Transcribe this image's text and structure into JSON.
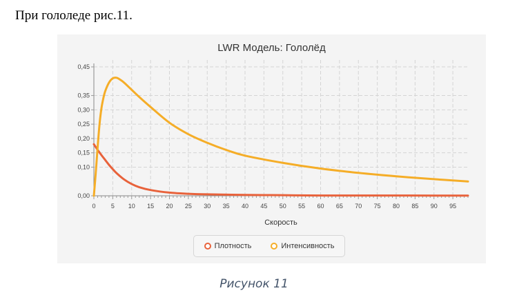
{
  "intro_text": "При гололеде рис.11.",
  "caption": "Рисунок 11",
  "colors": {
    "panel_bg": "#f4f4f4",
    "grid": "#d4d4d4",
    "density": "#e8623b",
    "intensity": "#f5ad27"
  },
  "chart_data": {
    "type": "line",
    "title": "LWR Модель: Гололёд",
    "xlabel": "Скорость",
    "ylabel": "",
    "xlim": [
      0,
      99
    ],
    "ylim": [
      0,
      0.45
    ],
    "x_ticks": [
      "0",
      "5",
      "10",
      "15",
      "20",
      "25",
      "30",
      "35",
      "40",
      "45",
      "50",
      "55",
      "60",
      "65",
      "70",
      "75",
      "80",
      "85",
      "90",
      "95"
    ],
    "y_ticks": [
      "0,00",
      "0,10",
      "0,15",
      "0,20",
      "0,25",
      "0,30",
      "0,35",
      "0,45"
    ],
    "y_tick_values": [
      0,
      0.1,
      0.15,
      0.2,
      0.25,
      0.3,
      0.35,
      0.45
    ],
    "grid": true,
    "legend_position": "bottom",
    "series": [
      {
        "name": "Плотность",
        "color": "#e8623b",
        "x": [
          0,
          1,
          2,
          3,
          4,
          5,
          6,
          8,
          10,
          12,
          15,
          20,
          25,
          30,
          40,
          50,
          60,
          70,
          80,
          90,
          99
        ],
        "y": [
          0.18,
          0.16,
          0.142,
          0.125,
          0.108,
          0.093,
          0.079,
          0.057,
          0.041,
          0.03,
          0.02,
          0.011,
          0.007,
          0.005,
          0.003,
          0.002,
          0.001,
          0.001,
          0.001,
          0.0005,
          0.0005
        ]
      },
      {
        "name": "Интенсивность",
        "color": "#f5ad27",
        "x": [
          0,
          0.5,
          1,
          1.5,
          2,
          2.5,
          3,
          4,
          5,
          6,
          7,
          8,
          10,
          12,
          15,
          20,
          25,
          30,
          35,
          40,
          50,
          60,
          70,
          80,
          90,
          99
        ],
        "y": [
          0.0,
          0.08,
          0.17,
          0.25,
          0.305,
          0.34,
          0.365,
          0.395,
          0.41,
          0.412,
          0.405,
          0.395,
          0.37,
          0.345,
          0.31,
          0.255,
          0.215,
          0.185,
          0.16,
          0.14,
          0.115,
          0.095,
          0.08,
          0.068,
          0.058,
          0.05
        ]
      }
    ]
  }
}
